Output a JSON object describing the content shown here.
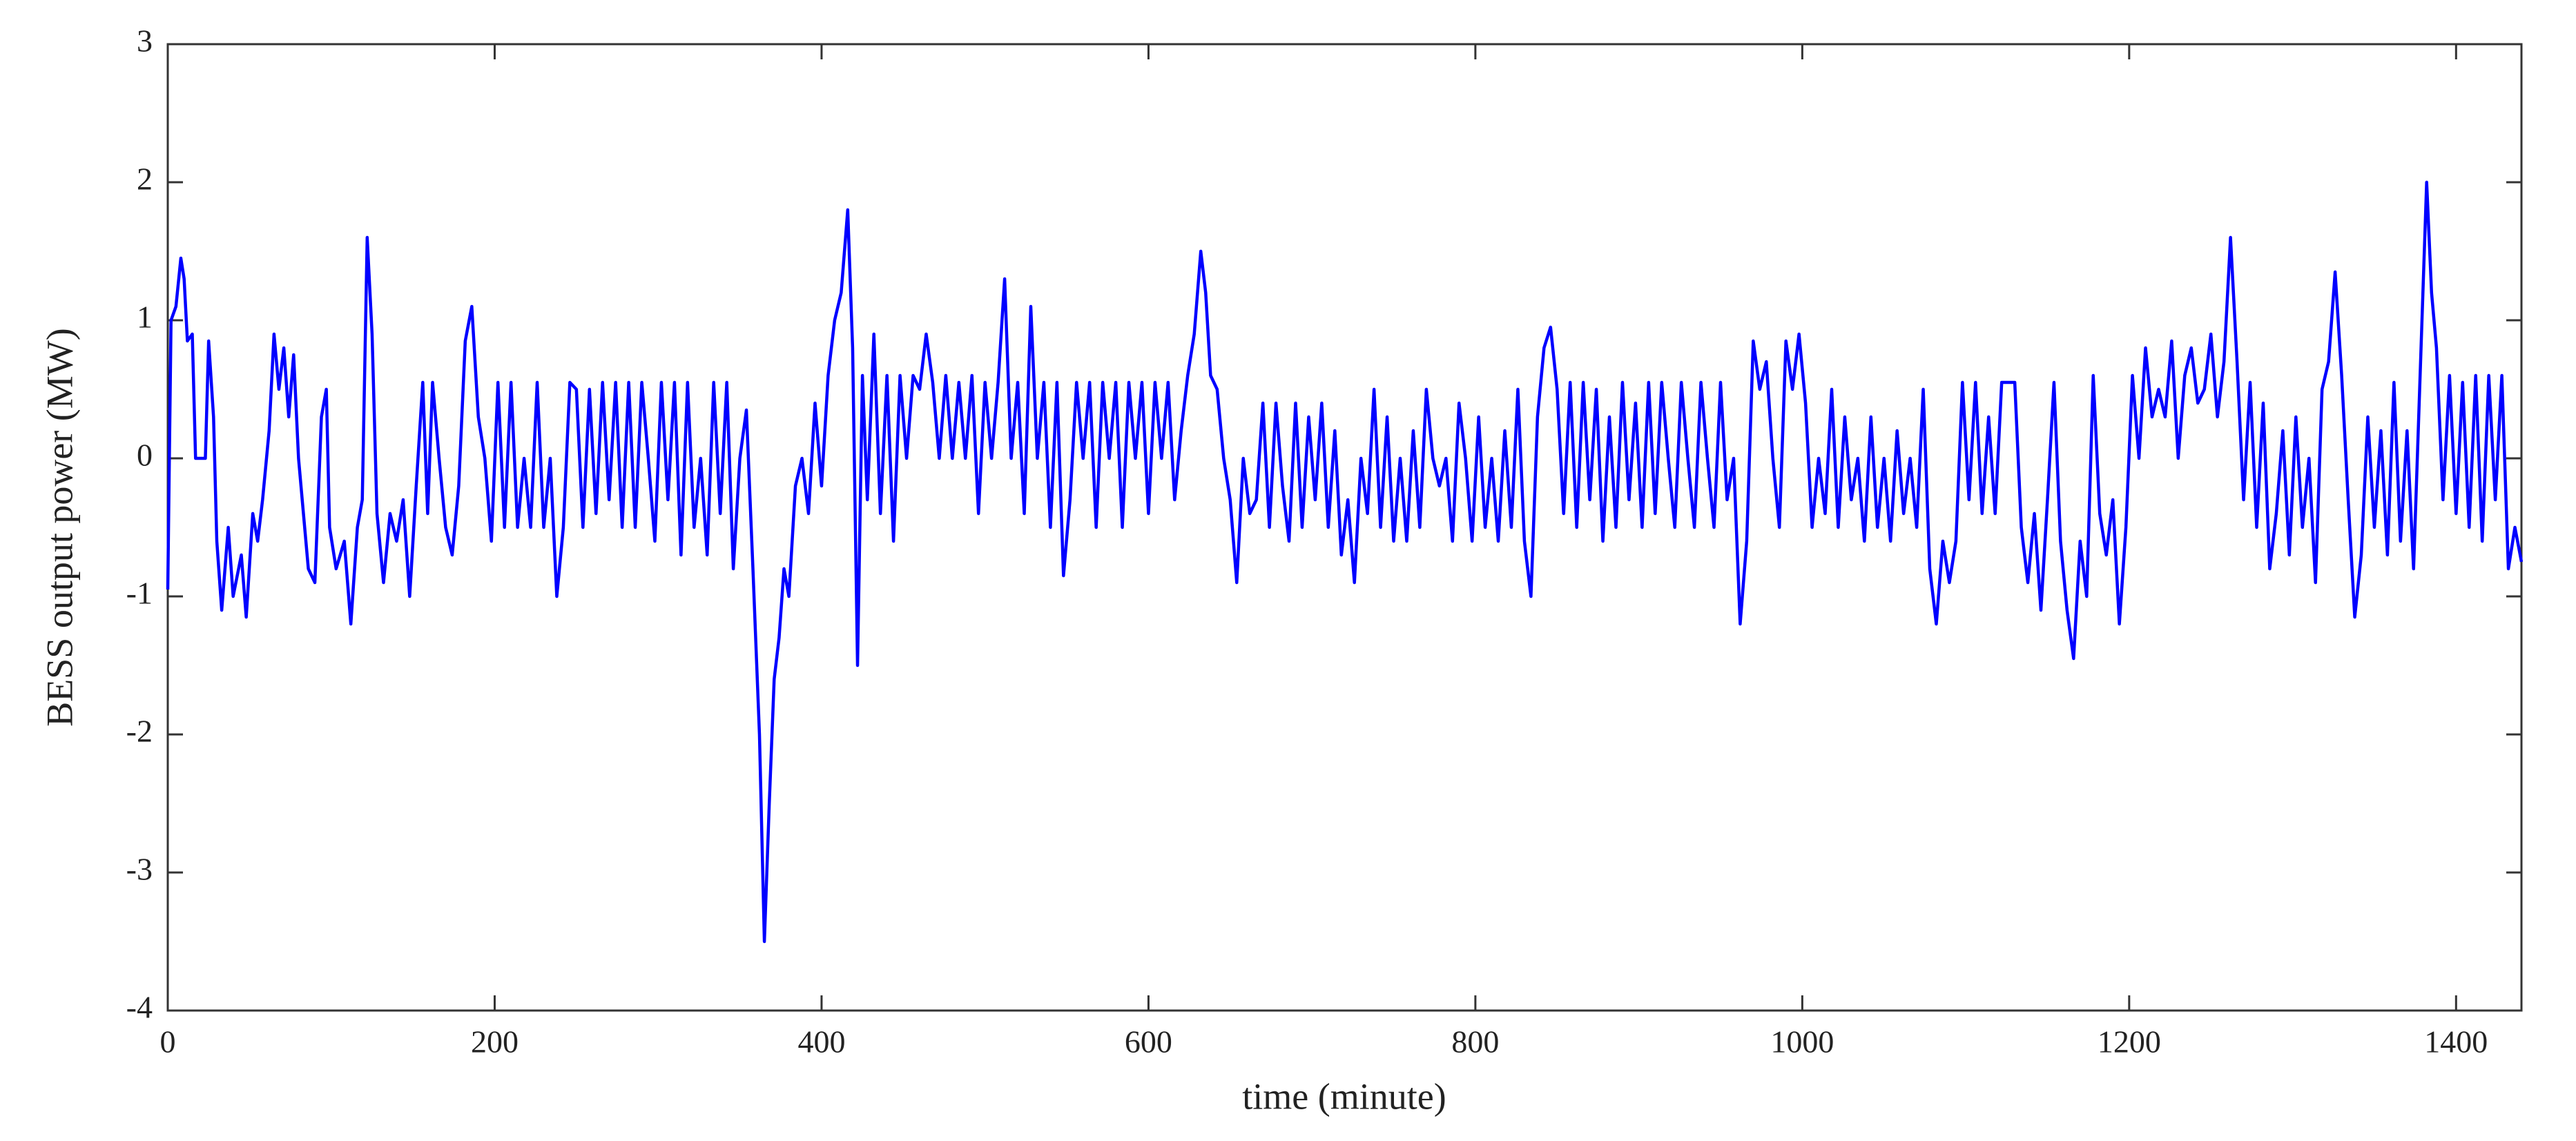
{
  "chart_data": {
    "type": "line",
    "x_label": "time (minute)",
    "y_label": "BESS output power (MW)",
    "color": "#0000ff",
    "xlim": [
      0,
      1440
    ],
    "xticks": [
      0,
      200,
      400,
      600,
      800,
      1000,
      1200,
      1400
    ],
    "ylim": [
      -4,
      3
    ],
    "yticks": [
      -4,
      -3,
      -2,
      -1,
      0,
      1,
      2,
      3
    ],
    "x": [
      0,
      2,
      5,
      8,
      10,
      12,
      15,
      17,
      23,
      25,
      28,
      30,
      33,
      37,
      40,
      45,
      48,
      52,
      55,
      58,
      62,
      65,
      68,
      71,
      74,
      77,
      80,
      83,
      86,
      90,
      94,
      97,
      99,
      103,
      108,
      112,
      116,
      119,
      122,
      125,
      128,
      132,
      136,
      140,
      144,
      148,
      152,
      156,
      159,
      162,
      166,
      170,
      174,
      178,
      182,
      186,
      190,
      194,
      198,
      202,
      206,
      210,
      214,
      218,
      222,
      226,
      230,
      234,
      238,
      242,
      246,
      250,
      254,
      258,
      262,
      266,
      270,
      274,
      278,
      282,
      286,
      290,
      294,
      298,
      302,
      306,
      310,
      314,
      318,
      322,
      326,
      330,
      334,
      338,
      342,
      346,
      350,
      354,
      358,
      362,
      365,
      368,
      371,
      374,
      377,
      380,
      384,
      388,
      392,
      396,
      400,
      404,
      408,
      412,
      416,
      419,
      422,
      425,
      428,
      432,
      436,
      440,
      444,
      448,
      452,
      456,
      460,
      464,
      468,
      472,
      476,
      480,
      484,
      488,
      492,
      496,
      500,
      504,
      508,
      512,
      516,
      520,
      524,
      528,
      532,
      536,
      540,
      544,
      548,
      552,
      556,
      560,
      564,
      568,
      572,
      576,
      580,
      584,
      588,
      592,
      596,
      600,
      604,
      608,
      612,
      616,
      620,
      624,
      628,
      632,
      635,
      638,
      642,
      646,
      650,
      654,
      658,
      662,
      666,
      670,
      674,
      678,
      682,
      686,
      690,
      694,
      698,
      702,
      706,
      710,
      714,
      718,
      722,
      726,
      730,
      734,
      738,
      742,
      746,
      750,
      754,
      758,
      762,
      766,
      770,
      774,
      778,
      782,
      786,
      790,
      794,
      798,
      802,
      806,
      810,
      814,
      818,
      822,
      826,
      830,
      834,
      838,
      842,
      846,
      850,
      854,
      858,
      862,
      866,
      870,
      874,
      878,
      882,
      886,
      890,
      894,
      898,
      902,
      906,
      910,
      914,
      918,
      922,
      926,
      930,
      934,
      938,
      942,
      946,
      950,
      954,
      958,
      962,
      966,
      970,
      974,
      978,
      982,
      986,
      990,
      994,
      998,
      1002,
      1006,
      1010,
      1014,
      1018,
      1022,
      1026,
      1030,
      1034,
      1038,
      1042,
      1046,
      1050,
      1054,
      1058,
      1062,
      1066,
      1070,
      1074,
      1078,
      1082,
      1086,
      1090,
      1094,
      1098,
      1102,
      1106,
      1110,
      1114,
      1118,
      1122,
      1126,
      1130,
      1134,
      1138,
      1142,
      1146,
      1150,
      1154,
      1158,
      1162,
      1166,
      1170,
      1174,
      1178,
      1182,
      1186,
      1190,
      1194,
      1198,
      1202,
      1206,
      1210,
      1214,
      1218,
      1222,
      1226,
      1230,
      1234,
      1238,
      1242,
      1246,
      1250,
      1254,
      1258,
      1262,
      1266,
      1270,
      1274,
      1278,
      1282,
      1286,
      1290,
      1294,
      1298,
      1302,
      1306,
      1310,
      1314,
      1318,
      1322,
      1326,
      1330,
      1334,
      1338,
      1342,
      1346,
      1350,
      1354,
      1358,
      1362,
      1366,
      1370,
      1374,
      1378,
      1382,
      1385,
      1388,
      1392,
      1396,
      1400,
      1404,
      1408,
      1412,
      1416,
      1420,
      1424,
      1428,
      1432,
      1436,
      1440
    ],
    "values": [
      -0.95,
      1.0,
      1.1,
      1.45,
      1.3,
      0.85,
      0.9,
      0,
      0,
      0.85,
      0.3,
      -0.6,
      -1.1,
      -0.5,
      -1.0,
      -0.7,
      -1.15,
      -0.4,
      -0.6,
      -0.3,
      0.2,
      0.9,
      0.5,
      0.8,
      0.3,
      0.75,
      0,
      -0.4,
      -0.8,
      -0.9,
      0.3,
      0.5,
      -0.5,
      -0.8,
      -0.6,
      -1.2,
      -0.5,
      -0.3,
      1.6,
      0.9,
      -0.4,
      -0.9,
      -0.4,
      -0.6,
      -0.3,
      -1.0,
      -0.2,
      0.55,
      -0.4,
      0.55,
      0,
      -0.5,
      -0.7,
      -0.2,
      0.85,
      1.1,
      0.3,
      0,
      -0.6,
      0.55,
      -0.5,
      0.55,
      -0.5,
      0,
      -0.5,
      0.55,
      -0.5,
      0,
      -1.0,
      -0.5,
      0.55,
      0.5,
      -0.5,
      0.5,
      -0.4,
      0.55,
      -0.3,
      0.55,
      -0.5,
      0.55,
      -0.5,
      0.55,
      0,
      -0.6,
      0.55,
      -0.3,
      0.55,
      -0.7,
      0.55,
      -0.5,
      0,
      -0.7,
      0.55,
      -0.4,
      0.55,
      -0.8,
      0,
      0.35,
      -0.8,
      -2.0,
      -3.5,
      -2.5,
      -1.6,
      -1.3,
      -0.8,
      -1.0,
      -0.2,
      0,
      -0.4,
      0.4,
      -0.2,
      0.6,
      1.0,
      1.2,
      1.8,
      0.8,
      -1.5,
      0.6,
      -0.3,
      0.9,
      -0.4,
      0.6,
      -0.6,
      0.6,
      0,
      0.6,
      0.5,
      0.9,
      0.55,
      0,
      0.6,
      0,
      0.55,
      0,
      0.6,
      -0.4,
      0.55,
      0,
      0.55,
      1.3,
      0,
      0.55,
      -0.4,
      1.1,
      0,
      0.55,
      -0.5,
      0.55,
      -0.85,
      -0.3,
      0.55,
      0,
      0.55,
      -0.5,
      0.55,
      0,
      0.55,
      -0.5,
      0.55,
      0,
      0.55,
      -0.4,
      0.55,
      0,
      0.55,
      -0.3,
      0.2,
      0.6,
      0.9,
      1.5,
      1.2,
      0.6,
      0.5,
      0,
      -0.3,
      -0.9,
      0,
      -0.4,
      -0.3,
      0.4,
      -0.5,
      0.4,
      -0.2,
      -0.6,
      0.4,
      -0.5,
      0.3,
      -0.3,
      0.4,
      -0.5,
      0.2,
      -0.7,
      -0.3,
      -0.9,
      0,
      -0.4,
      0.5,
      -0.5,
      0.3,
      -0.6,
      0,
      -0.6,
      0.2,
      -0.5,
      0.5,
      0,
      -0.2,
      0,
      -0.6,
      0.4,
      0,
      -0.6,
      0.3,
      -0.5,
      0,
      -0.6,
      0.2,
      -0.5,
      0.5,
      -0.6,
      -1.0,
      0.3,
      0.8,
      0.95,
      0.5,
      -0.4,
      0.55,
      -0.5,
      0.55,
      -0.3,
      0.5,
      -0.6,
      0.3,
      -0.5,
      0.55,
      -0.3,
      0.4,
      -0.5,
      0.55,
      -0.4,
      0.55,
      0,
      -0.5,
      0.55,
      0,
      -0.5,
      0.55,
      0,
      -0.5,
      0.55,
      -0.3,
      0,
      -1.2,
      -0.6,
      0.85,
      0.5,
      0.7,
      0,
      -0.5,
      0.85,
      0.5,
      0.9,
      0.4,
      -0.5,
      0,
      -0.4,
      0.5,
      -0.5,
      0.3,
      -0.3,
      0,
      -0.6,
      0.3,
      -0.5,
      0,
      -0.6,
      0.2,
      -0.4,
      0,
      -0.5,
      0.5,
      -0.8,
      -1.2,
      -0.6,
      -0.9,
      -0.6,
      0.55,
      -0.3,
      0.55,
      -0.4,
      0.3,
      -0.4,
      0.55,
      0.55,
      0.55,
      -0.5,
      -0.9,
      -0.4,
      -1.1,
      -0.3,
      0.55,
      -0.6,
      -1.1,
      -1.45,
      -0.6,
      -1.0,
      0.6,
      -0.4,
      -0.7,
      -0.3,
      -1.2,
      -0.5,
      0.6,
      0,
      0.8,
      0.3,
      0.5,
      0.3,
      0.85,
      0,
      0.6,
      0.8,
      0.4,
      0.5,
      0.9,
      0.3,
      0.7,
      1.6,
      0.7,
      -0.3,
      0.55,
      -0.5,
      0.4,
      -0.8,
      -0.4,
      0.2,
      -0.7,
      0.3,
      -0.5,
      0,
      -0.9,
      0.5,
      0.7,
      1.35,
      0.6,
      -0.3,
      -1.15,
      -0.7,
      0.3,
      -0.5,
      0.2,
      -0.7,
      0.55,
      -0.6,
      0.2,
      -0.8,
      0.6,
      2.0,
      1.2,
      0.8,
      -0.3,
      0.6,
      -0.4,
      0.55,
      -0.5,
      0.6,
      -0.6,
      0.6,
      -0.3,
      0.6,
      -0.8,
      -0.5,
      -0.75
    ]
  }
}
